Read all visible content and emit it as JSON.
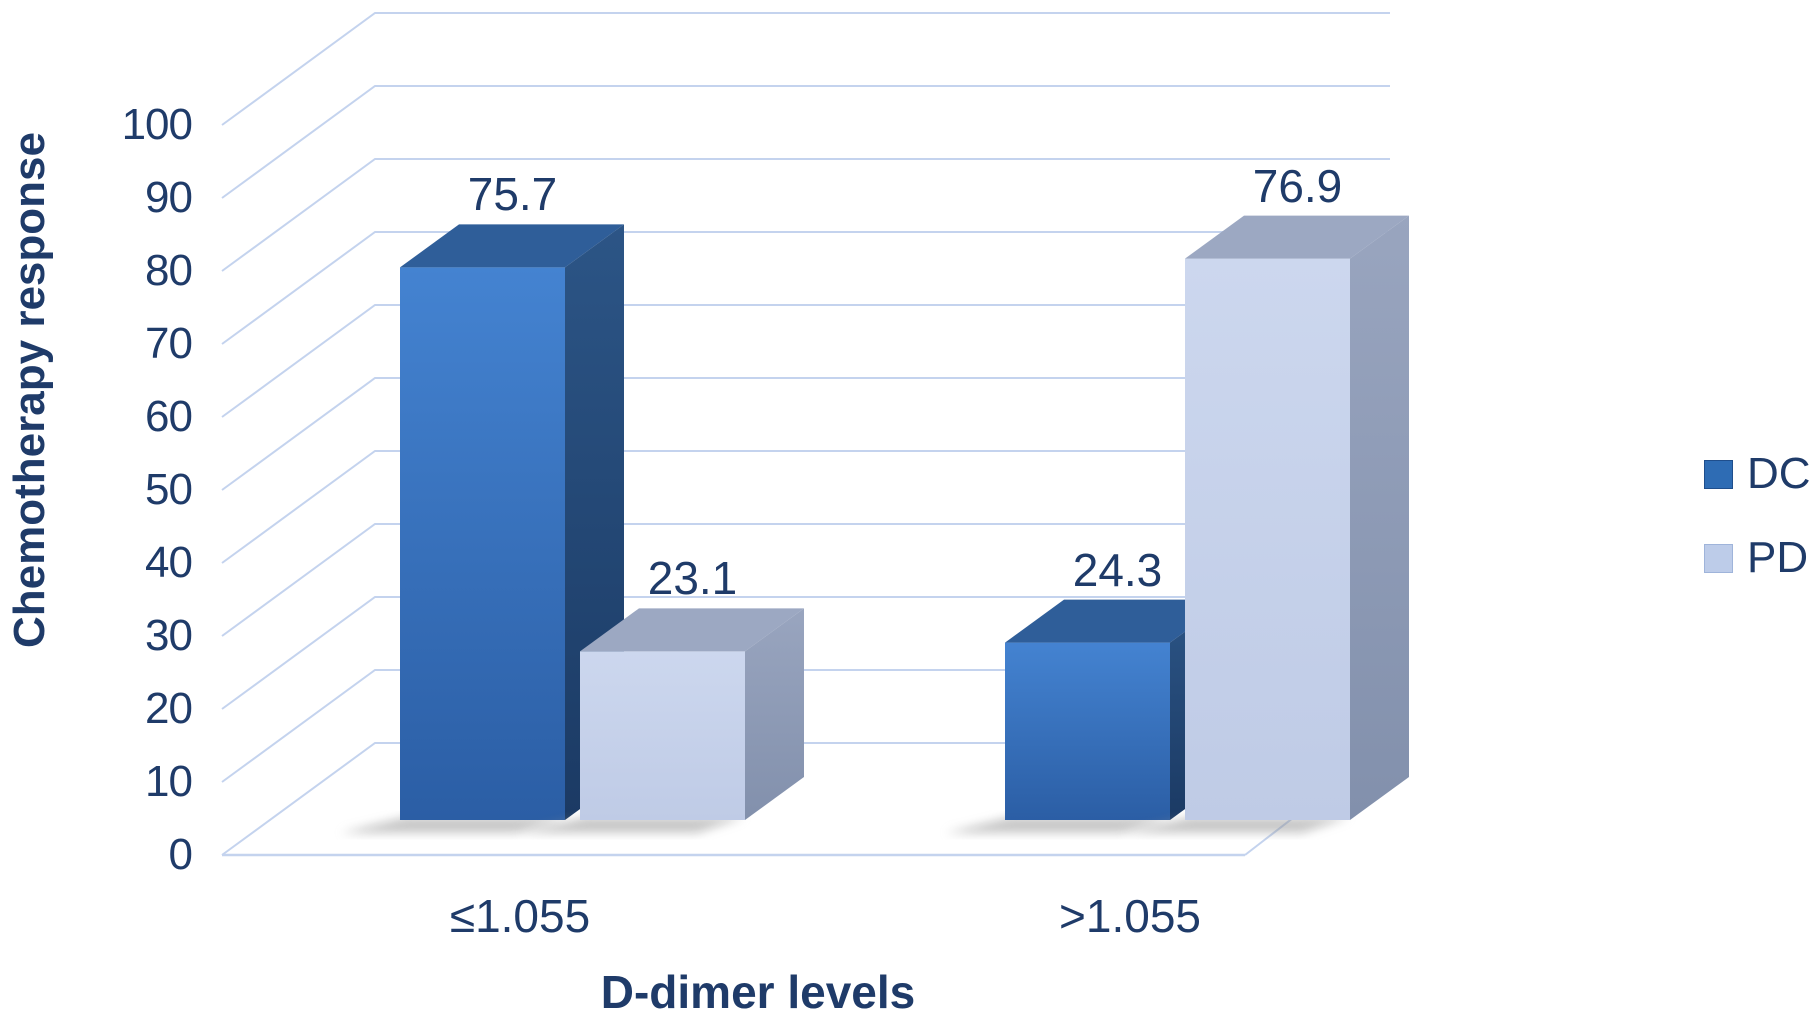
{
  "chart_data": {
    "type": "bar",
    "subtype": "3d-clustered-column",
    "title": "",
    "xlabel": "D-dimer levels",
    "ylabel": "Chemotherapy response",
    "categories": [
      "≤1.055",
      ">1.055"
    ],
    "series": [
      {
        "name": "DC",
        "values": [
          75.7,
          24.3
        ],
        "color": "#2E6CB4",
        "color_front_top": "#4483D1",
        "color_front_bottom": "#2B5EA5",
        "color_top": "#2F5E99",
        "color_side_top": "#2C5586",
        "color_side_bottom": "#1B3A64",
        "legend_border": "#1F4E8C"
      },
      {
        "name": "PD",
        "values": [
          23.1,
          76.9
        ],
        "color": "#BDCCE9",
        "color_front_top": "#CCD7EE",
        "color_front_bottom": "#BFCBE6",
        "color_top": "#9CA8C2",
        "color_side_top": "#99A5BF",
        "color_side_bottom": "#8290AC",
        "legend_border": "#9FB4DA"
      }
    ],
    "data_labels": [
      [
        "75.7",
        "23.1"
      ],
      [
        "24.3",
        "76.9"
      ]
    ],
    "ylim": [
      0,
      100
    ],
    "ytick_step": 10,
    "yticks": [
      "0",
      "10",
      "20",
      "30",
      "40",
      "50",
      "60",
      "70",
      "80",
      "90",
      "100"
    ],
    "grid": true,
    "legend_position": "right",
    "text_color": "#1F3B69",
    "gridline_color": "#C4D3EE",
    "background": "#FFFFFF"
  }
}
